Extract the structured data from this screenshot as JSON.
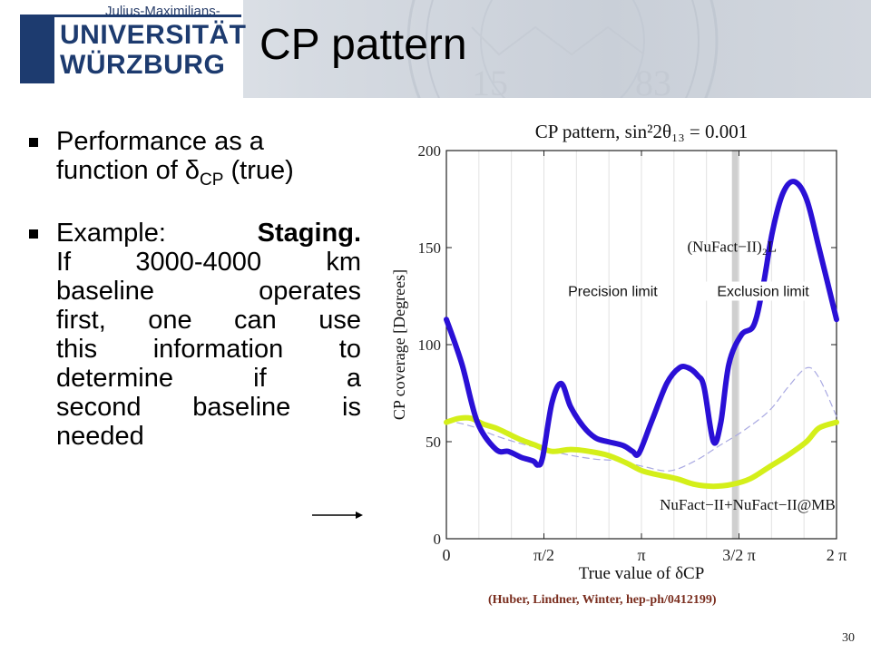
{
  "header": {
    "logo": {
      "top_text": "Julius-Maximilians-",
      "line1": "UNIVERSITÄT",
      "line2": "WÜRZBURG"
    },
    "title": "CP pattern"
  },
  "bullets": {
    "b1_line1": "Performance as a",
    "b1_line2_pre": "function of δ",
    "b1_line2_sub": "CP",
    "b1_line2_post": " (true)",
    "b2_lines": [
      "Example: ",
      "If 3000-4000 km",
      "baseline operates",
      "first, one can use",
      "this information to",
      "determine if a",
      "second baseline is",
      "needed"
    ],
    "b2_bold": "Staging."
  },
  "chart_data": {
    "type": "line",
    "title": "CP pattern, sin²2θ₁₃ = 0.001",
    "xlabel": "True value of δCP",
    "ylabel": "CP coverage [Degrees]",
    "xlim": [
      0,
      6.2832
    ],
    "ylim": [
      0,
      200
    ],
    "xticks": [
      {
        "value": 0,
        "label": "0"
      },
      {
        "value": 1.5708,
        "label": "π/2"
      },
      {
        "value": 3.1416,
        "label": "π"
      },
      {
        "value": 4.7124,
        "label": "3/2 π"
      },
      {
        "value": 6.2832,
        "label": "2 π"
      }
    ],
    "yticks": [
      {
        "value": 0,
        "label": "0"
      },
      {
        "value": 50,
        "label": "50"
      },
      {
        "value": 100,
        "label": "100"
      },
      {
        "value": 150,
        "label": "150"
      },
      {
        "value": 200,
        "label": "200"
      }
    ],
    "grid": "vertical",
    "vertical_marker_x": 4.65,
    "series": [
      {
        "name": "(NuFact−II)₂L",
        "color": "#2a10d6",
        "style": "thick",
        "x": [
          0,
          0.25,
          0.5,
          0.8,
          1.0,
          1.2,
          1.4,
          1.47,
          1.55,
          1.7,
          1.85,
          2.0,
          2.2,
          2.4,
          2.6,
          2.85,
          3.0,
          3.1,
          3.3,
          3.55,
          3.75,
          3.9,
          4.05,
          4.15,
          4.3,
          4.42,
          4.55,
          4.75,
          4.95,
          5.1,
          5.25,
          5.42,
          5.6,
          5.8,
          6.0,
          6.2832
        ],
        "y": [
          113,
          90,
          60,
          46,
          45,
          42,
          40,
          38,
          42,
          70,
          80,
          68,
          58,
          52,
          50,
          48,
          45,
          44,
          60,
          80,
          88,
          88,
          84,
          78,
          50,
          60,
          90,
          105,
          110,
          130,
          158,
          178,
          184,
          175,
          150,
          113
        ]
      },
      {
        "name": "NuFact−II+NuFact−II@MB",
        "color": "#d4ef1a",
        "style": "thick",
        "x": [
          0,
          0.2,
          0.4,
          0.6,
          0.8,
          1.0,
          1.2,
          1.45,
          1.7,
          2.0,
          2.3,
          2.6,
          2.9,
          3.15,
          3.4,
          3.7,
          4.0,
          4.3,
          4.6,
          4.9,
          5.2,
          5.5,
          5.8,
          6.0,
          6.2832
        ],
        "y": [
          60,
          62,
          62,
          59,
          57,
          54,
          51,
          48,
          45,
          46,
          45,
          43,
          39,
          35,
          33,
          31,
          28,
          27,
          28,
          31,
          37,
          43,
          50,
          57,
          60
        ]
      },
      {
        "name": "",
        "color": "#a9a9e2",
        "style": "dashed",
        "x": [
          0,
          0.4,
          0.8,
          1.2,
          1.6,
          2.0,
          2.4,
          2.8,
          3.2,
          3.6,
          4.0,
          4.4,
          4.8,
          5.2,
          5.5,
          5.8,
          6.0,
          6.2832
        ],
        "y": [
          61,
          58,
          53,
          49,
          46,
          43,
          41,
          40,
          37,
          35,
          40,
          48,
          56,
          66,
          78,
          88,
          83,
          63
        ]
      }
    ],
    "annotations": [
      {
        "text": "(NuFact−II)₂L",
        "at_x": 4.6,
        "at_y": 148
      },
      {
        "text": "Precision limit",
        "at_x": 2.68,
        "at_y": 125
      },
      {
        "text": "Exclusion limit",
        "at_x": 5.1,
        "at_y": 125
      },
      {
        "text": "NuFact−II+NuFact−II@MB",
        "at_x": 4.85,
        "at_y": 15
      }
    ]
  },
  "citation": "(Huber, Lindner, Winter, hep-ph/0412199)",
  "page_number": "30"
}
